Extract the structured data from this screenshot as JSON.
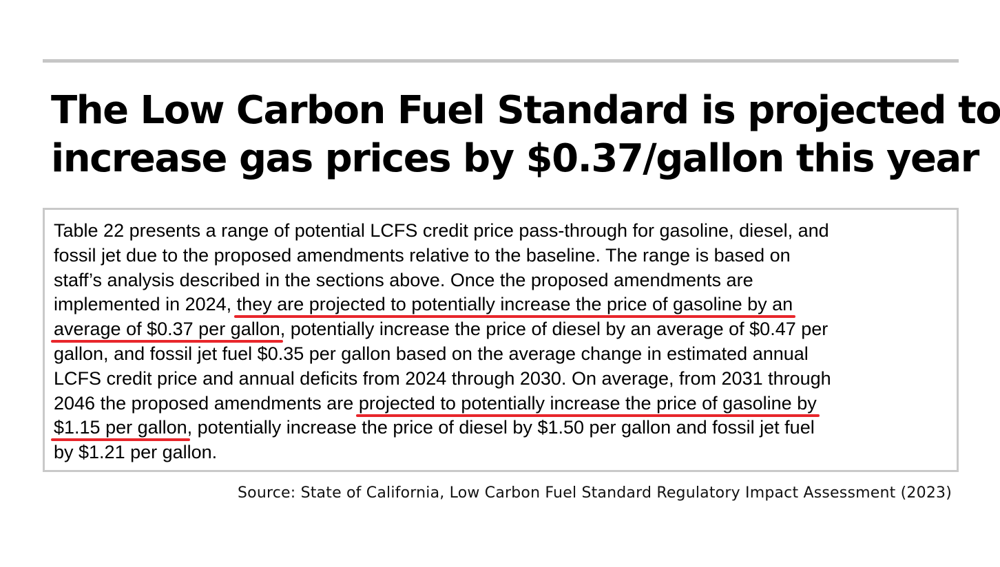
{
  "headline": {
    "line1": "The Low Carbon Fuel Standard is projected to",
    "line2": "increase gas prices by $0.37/gallon this year"
  },
  "excerpt": {
    "l1": "Table 22 presents a range of potential LCFS credit price pass-through for gasoline, diesel, and",
    "l2": "fossil jet due to the proposed amendments relative to the baseline. The range is based on",
    "l3": "staff’s analysis described in the sections above. Once the proposed amendments are",
    "l4a": "implemented in 2024, ",
    "l4b": "they are projected to potentially increase the price of gasoline by an",
    "l5a": "average of $0.37 per gallon",
    "l5b": ", potentially increase the price of diesel by an average of $0.47 per",
    "l6": "gallon, and fossil jet fuel $0.35 per gallon based on the average change in estimated annual",
    "l7": "LCFS credit price and annual deficits from 2024 through 2030. On average, from 2031 through",
    "l8a": "2046 the proposed amendments are ",
    "l8b": "projected to potentially increase the price of gasoline by",
    "l9a": "$1.15 per gallon",
    "l9b": ", potentially increase the price of diesel by $1.50 per gallon and fossil jet fuel",
    "l10": "by $1.21 per gallon."
  },
  "source": "Source: State of California, Low Carbon Fuel Standard Regulatory Impact Assessment (2023)",
  "colors": {
    "underline": "#e8262b",
    "rule": "#c6c6c6",
    "box_border": "#c9c9c9"
  }
}
